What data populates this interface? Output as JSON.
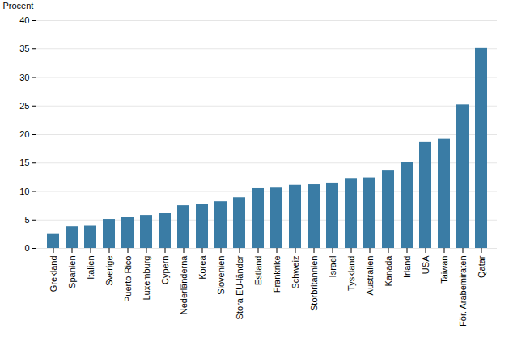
{
  "chart_data": {
    "type": "bar",
    "categories": [
      "Grekland",
      "Spanien",
      "Italien",
      "Sverige",
      "Puerto Rico",
      "Luxemburg",
      "Cypern",
      "Nederländerna",
      "Korea",
      "Slovenien",
      "Stora EU-länder",
      "Estland",
      "Frankrike",
      "Schweiz",
      "Storbritannien",
      "Israel",
      "Tyskland",
      "Australien",
      "Kanada",
      "Irland",
      "USA",
      "Taiwan",
      "För. Arabemiraten",
      "Qatar"
    ],
    "values": [
      2.6,
      3.8,
      3.9,
      5.1,
      5.5,
      5.8,
      6.1,
      7.5,
      7.8,
      8.2,
      8.9,
      10.5,
      10.6,
      11.1,
      11.2,
      11.5,
      12.3,
      12.4,
      13.6,
      15.1,
      18.6,
      19.2,
      25.2,
      35.2
    ],
    "color": "#3a7ca5",
    "ylabel": "Procent",
    "ylim": [
      0,
      40
    ],
    "yticks": [
      0,
      5,
      10,
      15,
      20,
      25,
      30,
      35,
      40
    ],
    "grid": true
  }
}
